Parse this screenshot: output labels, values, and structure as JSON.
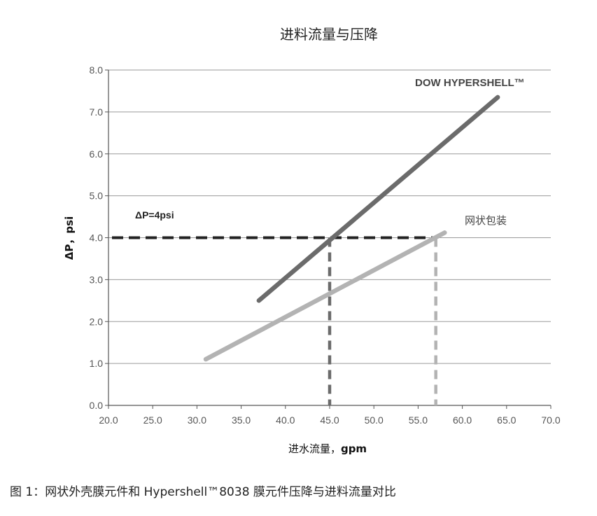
{
  "chart_data": {
    "type": "line",
    "title": "进料流量与压降",
    "xlabel_prefix": "进水流量，",
    "xlabel_unit": "gpm",
    "ylabel": "ΔP，psi",
    "xlim": [
      20.0,
      70.0
    ],
    "ylim": [
      0.0,
      8.0
    ],
    "x_ticks": [
      "20.0",
      "25.0",
      "30.0",
      "35.0",
      "40.0",
      "45.0",
      "50.0",
      "55.0",
      "60.0",
      "65.0",
      "70.0"
    ],
    "y_ticks": [
      "0.0",
      "1.0",
      "2.0",
      "3.0",
      "4.0",
      "5.0",
      "6.0",
      "7.0",
      "8.0"
    ],
    "grid": "horizontal",
    "series": [
      {
        "name": "DOW HYPERSHELL™",
        "color": "#6b6b6b",
        "x": [
          37.0,
          64.0
        ],
        "y": [
          2.5,
          7.35
        ]
      },
      {
        "name": "网状包装",
        "color": "#b3b3b3",
        "x": [
          31.0,
          58.0
        ],
        "y": [
          1.1,
          4.12
        ]
      }
    ],
    "reference_line": {
      "label": "ΔP=4psi",
      "y": 4.0,
      "x_end": 57.0,
      "color": "#222222"
    },
    "drop_lines": [
      {
        "x": 45.0,
        "color": "#6b6b6b"
      },
      {
        "x": 57.0,
        "color": "#b3b3b3"
      }
    ]
  },
  "caption": "图 1：网状外壳膜元件和 Hypershell™8038 膜元件压降与进料流量对比"
}
